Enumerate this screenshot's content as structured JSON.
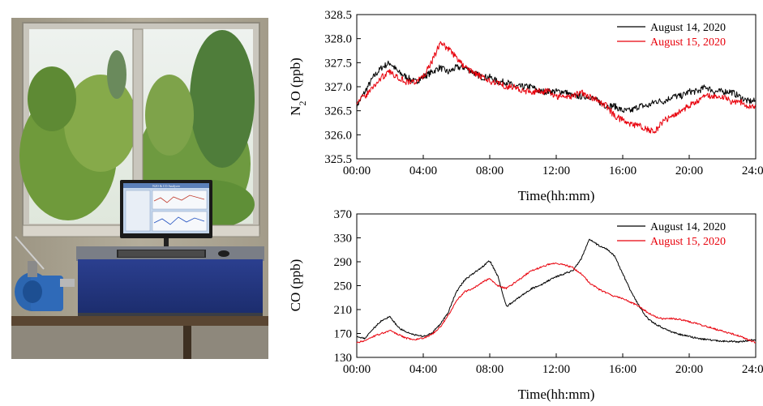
{
  "photo": {
    "monitor_title": "N2O & CO Analyzer"
  },
  "colors": {
    "series1": "#000000",
    "series2": "#e8000b"
  },
  "charts": [
    {
      "type": "line",
      "ylabel_main": "N",
      "ylabel_sub": "2",
      "ylabel_rest": "O (ppb)",
      "xlabel": "Time(hh:mm)",
      "ylim": [
        325.5,
        328.5
      ],
      "yticks": [
        "325.5",
        "326.0",
        "326.5",
        "327.0",
        "327.5",
        "328.0",
        "328.5"
      ],
      "xlim": [
        0,
        24
      ],
      "xticks": [
        "00:00",
        "04:00",
        "08:00",
        "12:00",
        "16:00",
        "20:00",
        "24:00"
      ],
      "legend_position": "top-right",
      "series": [
        {
          "name": "August 14, 2020",
          "x": [
            0,
            0.5,
            1,
            1.5,
            2,
            2.5,
            3,
            3.5,
            4,
            4.5,
            5,
            5.5,
            6,
            6.5,
            7,
            7.5,
            8,
            8.5,
            9,
            9.5,
            10,
            10.5,
            11,
            11.5,
            12,
            12.5,
            13,
            13.5,
            14,
            14.5,
            15,
            15.5,
            16,
            16.5,
            17,
            17.5,
            18,
            18.5,
            19,
            19.5,
            20,
            20.5,
            21,
            21.5,
            22,
            22.5,
            23,
            23.5,
            24
          ],
          "y": [
            326.6,
            326.9,
            327.2,
            327.4,
            327.5,
            327.3,
            327.2,
            327.1,
            327.2,
            327.3,
            327.4,
            327.3,
            327.4,
            327.4,
            327.3,
            327.2,
            327.2,
            327.1,
            327.1,
            327.0,
            327.0,
            327.0,
            326.9,
            326.9,
            326.9,
            326.9,
            326.8,
            326.8,
            326.8,
            326.7,
            326.6,
            326.6,
            326.5,
            326.5,
            326.6,
            326.6,
            326.7,
            326.7,
            326.8,
            326.8,
            326.9,
            326.9,
            327.0,
            326.9,
            326.9,
            326.9,
            326.8,
            326.7,
            326.7
          ]
        },
        {
          "name": "August 15, 2020",
          "x": [
            0,
            0.5,
            1,
            1.5,
            2,
            2.5,
            3,
            3.5,
            4,
            4.5,
            5,
            5.5,
            6,
            6.5,
            7,
            7.5,
            8,
            8.5,
            9,
            9.5,
            10,
            10.5,
            11,
            11.5,
            12,
            12.5,
            13,
            13.5,
            14,
            14.5,
            15,
            15.5,
            16,
            16.5,
            17,
            17.5,
            18,
            18.5,
            19,
            19.5,
            20,
            20.5,
            21,
            21.5,
            22,
            22.5,
            23,
            23.5,
            24
          ],
          "y": [
            326.7,
            326.8,
            327.0,
            327.2,
            327.3,
            327.2,
            327.1,
            327.1,
            327.2,
            327.5,
            327.9,
            327.8,
            327.6,
            327.4,
            327.3,
            327.2,
            327.1,
            327.1,
            327.0,
            327.0,
            326.9,
            326.9,
            326.9,
            326.9,
            326.8,
            326.8,
            326.8,
            326.9,
            326.8,
            326.7,
            326.6,
            326.4,
            326.3,
            326.2,
            326.2,
            326.1,
            326.1,
            326.3,
            326.4,
            326.5,
            326.6,
            326.7,
            326.8,
            326.8,
            326.8,
            326.7,
            326.7,
            326.6,
            326.6
          ]
        }
      ]
    },
    {
      "type": "line",
      "ylabel_main": "CO (ppb)",
      "ylabel_sub": "",
      "ylabel_rest": "",
      "xlabel": "Time(hh:mm)",
      "ylim": [
        130,
        370
      ],
      "yticks": [
        "130",
        "170",
        "210",
        "250",
        "290",
        "330",
        "370"
      ],
      "xlim": [
        0,
        24
      ],
      "xticks": [
        "00:00",
        "04:00",
        "08:00",
        "12:00",
        "16:00",
        "20:00",
        "24:00"
      ],
      "legend_position": "top-right",
      "series": [
        {
          "name": "August 14, 2020",
          "x": [
            0,
            0.5,
            1,
            1.5,
            2,
            2.5,
            3,
            3.5,
            4,
            4.5,
            5,
            5.5,
            6,
            6.5,
            7,
            7.5,
            8,
            8.5,
            9,
            9.5,
            10,
            10.5,
            11,
            11.5,
            12,
            12.5,
            13,
            13.5,
            14,
            14.5,
            15,
            15.5,
            16,
            16.5,
            17,
            17.5,
            18,
            18.5,
            19,
            19.5,
            20,
            20.5,
            21,
            21.5,
            22,
            22.5,
            23,
            23.5,
            24
          ],
          "y": [
            165,
            162,
            178,
            192,
            198,
            180,
            172,
            168,
            165,
            170,
            185,
            205,
            240,
            260,
            270,
            280,
            292,
            265,
            215,
            225,
            235,
            245,
            250,
            258,
            265,
            270,
            275,
            295,
            328,
            318,
            312,
            300,
            270,
            240,
            215,
            195,
            185,
            178,
            172,
            168,
            165,
            162,
            160,
            158,
            157,
            157,
            156,
            158,
            160
          ]
        },
        {
          "name": "August 15, 2020",
          "x": [
            0,
            0.5,
            1,
            1.5,
            2,
            2.5,
            3,
            3.5,
            4,
            4.5,
            5,
            5.5,
            6,
            6.5,
            7,
            7.5,
            8,
            8.5,
            9,
            9.5,
            10,
            10.5,
            11,
            11.5,
            12,
            12.5,
            13,
            13.5,
            14,
            14.5,
            15,
            15.5,
            16,
            16.5,
            17,
            17.5,
            18,
            18.5,
            19,
            19.5,
            20,
            20.5,
            21,
            21.5,
            22,
            22.5,
            23,
            23.5,
            24
          ],
          "y": [
            155,
            158,
            165,
            170,
            175,
            168,
            162,
            160,
            162,
            168,
            180,
            200,
            225,
            240,
            245,
            255,
            262,
            250,
            245,
            255,
            265,
            275,
            280,
            285,
            288,
            285,
            280,
            270,
            255,
            245,
            238,
            232,
            228,
            222,
            215,
            205,
            198,
            194,
            195,
            193,
            190,
            186,
            182,
            178,
            174,
            170,
            166,
            160,
            155
          ]
        }
      ]
    }
  ]
}
